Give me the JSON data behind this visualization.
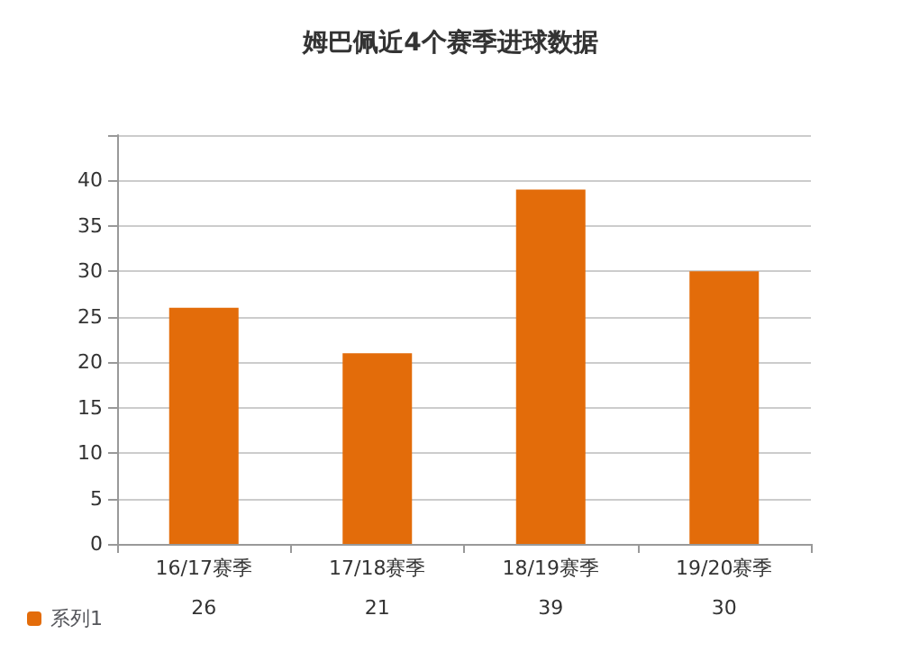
{
  "chart_data": {
    "type": "bar",
    "title": "姆巴佩近4个赛季进球数据",
    "categories": [
      "16/17赛季",
      "17/18赛季",
      "18/19赛季",
      "19/20赛季"
    ],
    "series": [
      {
        "name": "系列1",
        "color": "#e36c0a",
        "values": [
          26,
          21,
          39,
          30
        ]
      }
    ],
    "ylim": [
      0,
      45
    ],
    "yticks": [
      0,
      5,
      10,
      15,
      20,
      25,
      30,
      35,
      40,
      {
        "value": 45,
        "label": null
      }
    ],
    "grid": "y",
    "data_labels": true,
    "legend": "bottom left"
  }
}
